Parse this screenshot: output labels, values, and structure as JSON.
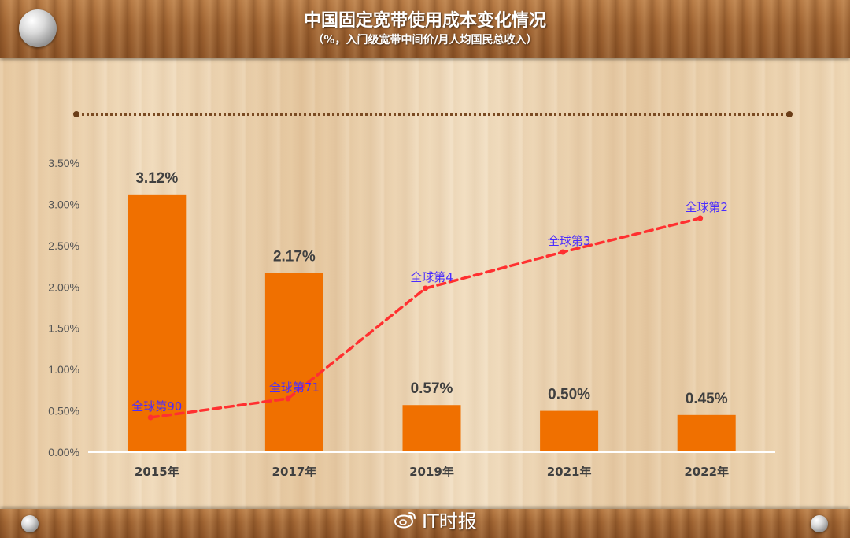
{
  "header": {
    "title": "中国固定宽带使用成本变化情况",
    "subtitle": "（%，入门级宽带中间价/月人均国民总收入）"
  },
  "watermark": {
    "text": "IT时报",
    "icon": "weibo-icon"
  },
  "chart_data": {
    "type": "bar",
    "categories": [
      "2015年",
      "2017年",
      "2019年",
      "2021年",
      "2022年"
    ],
    "values": [
      3.12,
      2.17,
      0.57,
      0.5,
      0.45
    ],
    "value_labels": [
      "3.12%",
      "2.17%",
      "0.57%",
      "0.50%",
      "0.45%"
    ],
    "ylim": [
      0,
      3.5
    ],
    "yticks": [
      "0.00%",
      "0.50%",
      "1.00%",
      "1.50%",
      "2.00%",
      "2.50%",
      "3.00%",
      "3.50%"
    ],
    "grid": false,
    "bar_color": "#f07000",
    "line_overlay": {
      "type": "line",
      "style": "dashed",
      "color": "#ff3030",
      "rank_labels": [
        "全球第90",
        "全球第71",
        "全球第4",
        "全球第3",
        "全球第2"
      ],
      "rank_values": [
        90,
        71,
        4,
        3,
        2
      ],
      "label_color": "#4a2cff"
    }
  }
}
